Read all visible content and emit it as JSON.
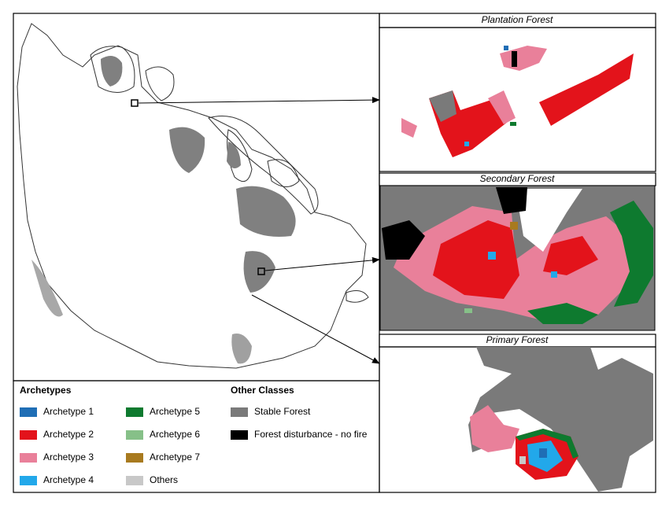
{
  "panels": [
    {
      "title": "Plantation Forest"
    },
    {
      "title": "Secondary Forest"
    },
    {
      "title": "Primary Forest"
    }
  ],
  "legend": {
    "archetypes": {
      "title": "Archetypes",
      "items": [
        {
          "label": "Archetype 1",
          "color": "#1f6eb5"
        },
        {
          "label": "Archetype 2",
          "color": "#e3131b"
        },
        {
          "label": "Archetype 3",
          "color": "#e9809a"
        },
        {
          "label": "Archetype 4",
          "color": "#22a8ea"
        },
        {
          "label": "Archetype 5",
          "color": "#0e7a2f"
        },
        {
          "label": "Archetype 6",
          "color": "#86c088"
        },
        {
          "label": "Archetype 7",
          "color": "#a87a1f"
        },
        {
          "label": "Others",
          "color": "#c8c8c8"
        }
      ]
    },
    "other_classes": {
      "title": "Other Classes",
      "items": [
        {
          "label": "Stable Forest",
          "color": "#7a7a7a"
        },
        {
          "label": "Forest disturbance - no fire",
          "color": "#000000"
        }
      ]
    }
  }
}
